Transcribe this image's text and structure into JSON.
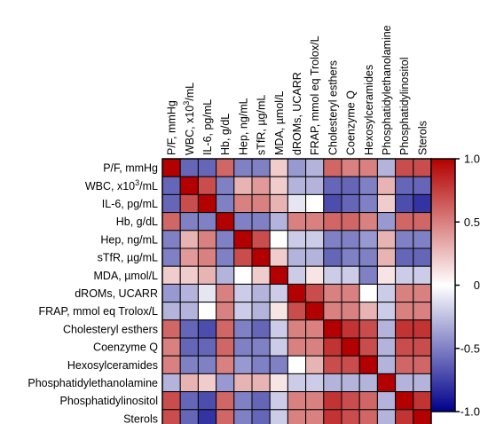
{
  "chart_data": {
    "type": "heatmap",
    "title": "",
    "row_labels": [
      "P/F, mmHg",
      "WBC, x10^3/mL",
      "IL-6, pg/mL",
      "Hb, g/dL",
      "Hep, ng/mL",
      "sTfR, µg/mL",
      "MDA, µmol/L",
      "dROMs, UCARR",
      "FRAP, mmol eq Trolox/L",
      "Cholesteryl esthers",
      "Coenzyme Q",
      "Hexosylceramides",
      "Phosphatidylethanolamine",
      "Phosphatidylinositol",
      "Sterols"
    ],
    "col_labels": [
      "P/F, mmHg",
      "WBC, x10^3/mL",
      "IL-6, pg/mL",
      "Hb, g/dL",
      "Hep, ng/mL",
      "sTfR, µg/mL",
      "MDA, µmol/L",
      "dROMs, UCARR",
      "FRAP, mmol eq Trolox/L",
      "Cholesteryl esthers",
      "Coenzyme Q",
      "Hexosylceramides",
      "Phosphatidylethanolamine",
      "Phosphatidylinositol",
      "Sterols"
    ],
    "values": [
      [
        1.0,
        -0.6,
        -0.6,
        0.6,
        -0.5,
        -0.5,
        0.2,
        -0.4,
        -0.3,
        0.6,
        0.5,
        0.5,
        -0.3,
        0.7,
        0.7
      ],
      [
        -0.6,
        1.0,
        0.7,
        -0.5,
        0.3,
        0.4,
        0.2,
        -0.3,
        -0.3,
        -0.6,
        -0.6,
        -0.5,
        0.3,
        -0.6,
        -0.6
      ],
      [
        -0.6,
        0.7,
        1.0,
        -0.5,
        0.5,
        0.5,
        0.3,
        -0.1,
        0.0,
        -0.7,
        -0.6,
        -0.5,
        0.2,
        -0.7,
        -0.8
      ],
      [
        0.6,
        -0.5,
        -0.5,
        1.0,
        -0.5,
        -0.5,
        -0.3,
        0.5,
        0.5,
        0.6,
        0.6,
        0.5,
        -0.4,
        0.6,
        0.6
      ],
      [
        -0.5,
        0.3,
        0.5,
        -0.5,
        1.0,
        0.7,
        0.0,
        -0.2,
        -0.2,
        -0.5,
        -0.5,
        -0.4,
        0.3,
        -0.5,
        -0.5
      ],
      [
        -0.5,
        0.4,
        0.5,
        -0.5,
        0.7,
        1.0,
        0.2,
        -0.3,
        -0.3,
        -0.6,
        -0.5,
        -0.5,
        0.3,
        -0.6,
        -0.6
      ],
      [
        0.2,
        0.2,
        0.3,
        -0.3,
        0.0,
        0.2,
        1.0,
        -0.2,
        0.1,
        -0.2,
        -0.2,
        -0.5,
        0.1,
        -0.2,
        -0.2
      ],
      [
        -0.4,
        -0.3,
        -0.1,
        0.5,
        -0.2,
        -0.3,
        -0.2,
        1.0,
        0.7,
        0.5,
        0.5,
        0.0,
        -0.2,
        0.5,
        0.5
      ],
      [
        -0.3,
        -0.3,
        0.0,
        0.5,
        -0.2,
        -0.3,
        0.1,
        0.7,
        1.0,
        0.5,
        0.5,
        0.3,
        -0.2,
        0.5,
        0.5
      ],
      [
        0.6,
        -0.6,
        -0.7,
        0.6,
        -0.5,
        -0.6,
        -0.2,
        0.5,
        0.5,
        1.0,
        0.8,
        0.7,
        -0.3,
        0.8,
        0.8
      ],
      [
        0.5,
        -0.6,
        -0.6,
        0.6,
        -0.5,
        -0.5,
        -0.2,
        0.5,
        0.5,
        0.8,
        1.0,
        0.7,
        -0.3,
        0.7,
        0.7
      ],
      [
        0.5,
        -0.5,
        -0.5,
        0.5,
        -0.4,
        -0.5,
        -0.5,
        0.0,
        0.3,
        0.7,
        0.7,
        1.0,
        -0.3,
        0.6,
        0.6
      ],
      [
        -0.3,
        0.3,
        0.2,
        -0.4,
        0.3,
        0.3,
        0.1,
        -0.2,
        -0.2,
        -0.3,
        -0.3,
        -0.3,
        1.0,
        -0.3,
        -0.3
      ],
      [
        0.7,
        -0.6,
        -0.7,
        0.6,
        -0.5,
        -0.6,
        -0.2,
        0.5,
        0.5,
        0.8,
        0.7,
        0.6,
        -0.3,
        1.0,
        0.8
      ],
      [
        0.7,
        -0.6,
        -0.8,
        0.6,
        -0.5,
        -0.6,
        -0.2,
        0.5,
        0.5,
        0.8,
        0.7,
        0.6,
        -0.3,
        0.8,
        1.0
      ]
    ],
    "scale_min": -1.0,
    "scale_max": 1.0,
    "colorbar_ticks": [
      "1.0",
      "0.5",
      "0",
      "-0.5",
      "-1.0"
    ],
    "colorbar_tick_values": [
      1.0,
      0.5,
      0,
      -0.5,
      -1.0
    ],
    "colors": {
      "low": "#00008b",
      "mid": "#ffffff",
      "high": "#b30000"
    },
    "grid": true,
    "legend": "right"
  }
}
